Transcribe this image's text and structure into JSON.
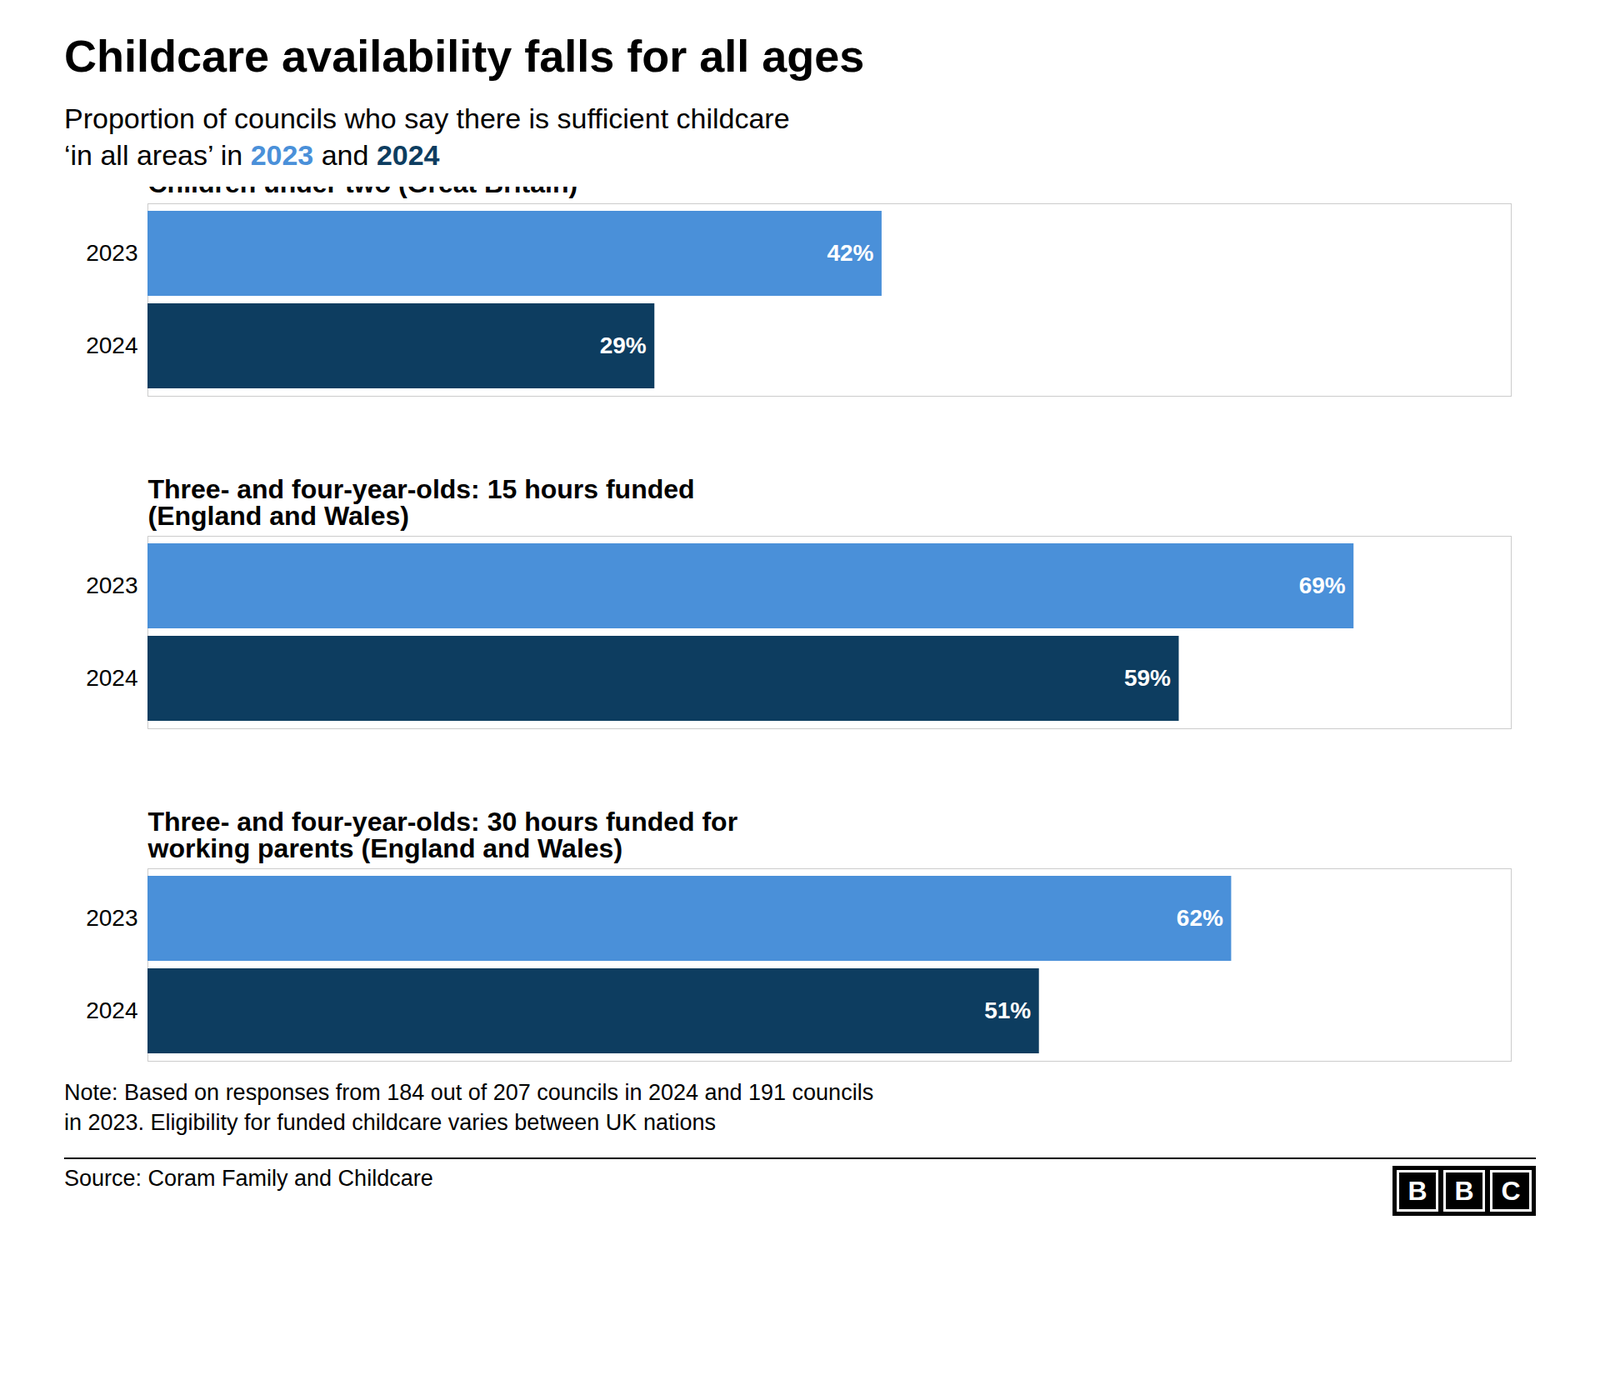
{
  "chart_data": {
    "type": "bar",
    "orientation": "horizontal",
    "title": "Childcare availability falls for all ages",
    "subtitle": "Proportion of councils who say there is sufficient childcare\n‘in all areas’ in 2023 and 2024",
    "categories": [
      "Children under two (Great Britain)",
      "Three- and four-year-olds: 15 hours funded\n(England and Wales)",
      "Three- and four-year-olds: 30 hours funded for\nworking parents (England and Wales)"
    ],
    "series": [
      {
        "name": "2023",
        "color": "#4a90d9",
        "values": [
          42,
          69,
          62
        ],
        "value_labels": [
          "42%",
          "69%",
          "62%"
        ]
      },
      {
        "name": "2024",
        "color": "#0d3d60",
        "values": [
          29,
          59,
          51
        ],
        "value_labels": [
          "29%",
          "59%",
          "51%"
        ]
      }
    ],
    "xlim": [
      0,
      78
    ],
    "data_labels": true,
    "tick_labels": "y",
    "grid": false,
    "note": "Note: Based on responses from 184 out of 207 councils in 2024 and 191 councils\nin 2023. Eligibility for funded childcare varies between UK nations",
    "source": "Source: Coram Family and Childcare",
    "logo": "BBC"
  }
}
